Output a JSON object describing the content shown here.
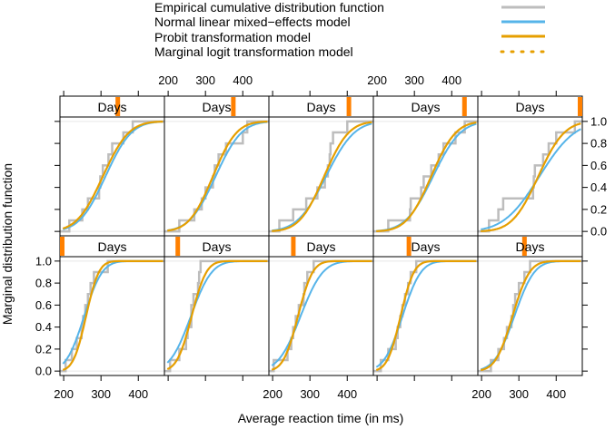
{
  "chart_data": {
    "type": "line",
    "layout": "lattice 5 columns x 2 rows, one panel per subject (Days strip)",
    "xlabel": "Average reaction time (in ms)",
    "ylabel": "Marginal distribution function",
    "xlim": [
      190,
      470
    ],
    "ylim": [
      -0.04,
      1.04
    ],
    "x_ticks": [
      200,
      300,
      400
    ],
    "y_ticks": [
      0.0,
      0.2,
      0.4,
      0.6,
      0.8,
      1.0
    ],
    "y_tick_labels": [
      "0.0",
      "0.2",
      "0.4",
      "0.6",
      "0.8",
      "1.0"
    ],
    "strip_label": "Days",
    "legend": {
      "placement": "top",
      "entries": [
        {
          "label": "Empirical cumulative distribution function",
          "color": "#BDBDBD",
          "style": "solid"
        },
        {
          "label": "Normal linear mixed−effects model",
          "color": "#56B4E9",
          "style": "solid"
        },
        {
          "label": "Probit transformation model",
          "color": "#E69F00",
          "style": "solid"
        },
        {
          "label": "Marginal logit transformation model",
          "color": "#E69F00",
          "style": "dotted"
        }
      ]
    },
    "colors": {
      "ecdf": "#BDBDBD",
      "normal": "#56B4E9",
      "probit": "#E69F00",
      "strip_marker": "#FF8000",
      "refline": "#E6E6E6"
    },
    "panels": [
      {
        "row": "bottom",
        "col": 1,
        "days_marker": 0.0,
        "ecdf": [
          205,
          222,
          235,
          248,
          252,
          258,
          265,
          272,
          281,
          318
        ],
        "normal": {
          "mean": 255,
          "sd": 38
        },
        "probit": {
          "mean": 260,
          "sd": 27
        }
      },
      {
        "row": "bottom",
        "col": 2,
        "days_marker": 0.111,
        "ecdf": [
          205,
          230,
          248,
          252,
          262,
          262,
          268,
          280,
          283,
          287
        ],
        "normal": {
          "mean": 261,
          "sd": 44
        },
        "probit": {
          "mean": 263,
          "sd": 31
        }
      },
      {
        "row": "bottom",
        "col": 3,
        "days_marker": 0.222,
        "ecdf": [
          203,
          240,
          250,
          255,
          262,
          270,
          283,
          285,
          293,
          310
        ],
        "normal": {
          "mean": 275,
          "sd": 47
        },
        "probit": {
          "mean": 268,
          "sd": 31
        }
      },
      {
        "row": "bottom",
        "col": 4,
        "days_marker": 0.333,
        "ecdf": [
          210,
          230,
          250,
          255,
          262,
          268,
          275,
          283,
          290,
          305
        ],
        "normal": {
          "mean": 268,
          "sd": 39
        },
        "probit": {
          "mean": 263,
          "sd": 28
        }
      },
      {
        "row": "bottom",
        "col": 5,
        "days_marker": 0.444,
        "ecdf": [
          225,
          245,
          260,
          268,
          280,
          285,
          290,
          300,
          315,
          330
        ],
        "normal": {
          "mean": 288,
          "sd": 42
        },
        "probit": {
          "mean": 283,
          "sd": 36
        }
      },
      {
        "row": "top",
        "col": 1,
        "days_marker": 0.556,
        "ecdf": [
          215,
          250,
          265,
          295,
          298,
          305,
          320,
          330,
          360,
          385
        ],
        "normal": {
          "mean": 312,
          "sd": 55
        },
        "probit": {
          "mean": 305,
          "sd": 55
        }
      },
      {
        "row": "top",
        "col": 2,
        "days_marker": 0.667,
        "ecdf": [
          230,
          270,
          290,
          300,
          320,
          325,
          335,
          355,
          400,
          412
        ],
        "normal": {
          "mean": 327,
          "sd": 55
        },
        "probit": {
          "mean": 320,
          "sd": 50
        }
      },
      {
        "row": "top",
        "col": 3,
        "days_marker": 0.778,
        "ecdf": [
          218,
          255,
          290,
          320,
          340,
          348,
          353,
          355,
          362,
          400
        ],
        "normal": {
          "mean": 343,
          "sd": 60
        },
        "probit": {
          "mean": 338,
          "sd": 52
        }
      },
      {
        "row": "top",
        "col": 4,
        "days_marker": 0.889,
        "ecdf": [
          230,
          288,
          290,
          318,
          325,
          345,
          365,
          378,
          410,
          435
        ],
        "normal": {
          "mean": 350,
          "sd": 58
        },
        "probit": {
          "mean": 345,
          "sd": 52
        }
      },
      {
        "row": "top",
        "col": 5,
        "days_marker": 1.0,
        "ecdf": [
          220,
          245,
          258,
          338,
          340,
          343,
          365,
          380,
          400,
          450
        ],
        "normal": {
          "mean": 355,
          "sd": 75
        },
        "probit": {
          "mean": 352,
          "sd": 55
        }
      }
    ]
  }
}
